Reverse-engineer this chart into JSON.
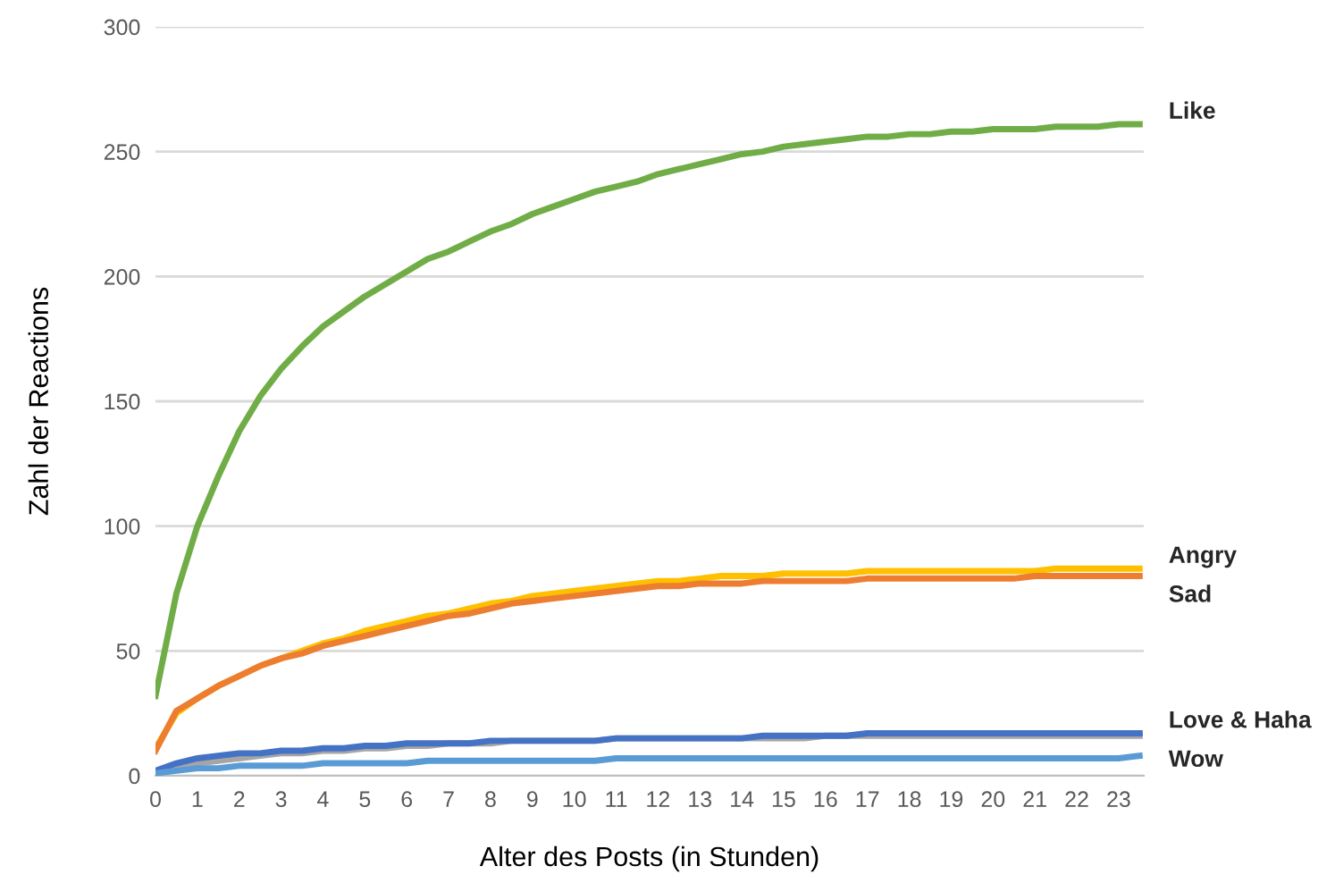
{
  "chart_data": {
    "type": "line",
    "xlabel": "Alter des Posts (in Stunden)",
    "ylabel": "Zahl der Reactions",
    "x": [
      0,
      0.5,
      1,
      1.5,
      2,
      2.5,
      3,
      3.5,
      4,
      4.5,
      5,
      5.5,
      6,
      6.5,
      7,
      7.5,
      8,
      8.5,
      9,
      9.5,
      10,
      10.5,
      11,
      11.5,
      12,
      12.5,
      13,
      13.5,
      14,
      14.5,
      15,
      15.5,
      16,
      16.5,
      17,
      17.5,
      18,
      18.5,
      19,
      19.5,
      20,
      20.5,
      21,
      21.5,
      22,
      22.5,
      23,
      23.5
    ],
    "series": [
      {
        "name": "Like",
        "color": "#70ad47",
        "values": [
          32,
          73,
          100,
          120,
          138,
          152,
          163,
          172,
          180,
          186,
          192,
          197,
          202,
          207,
          210,
          214,
          218,
          221,
          225,
          228,
          231,
          234,
          236,
          238,
          241,
          243,
          245,
          247,
          249,
          250,
          252,
          253,
          254,
          255,
          256,
          256,
          257,
          257,
          258,
          258,
          259,
          259,
          259,
          260,
          260,
          260,
          261,
          261
        ]
      },
      {
        "name": "Angry",
        "color": "#ffc000",
        "values": [
          11,
          25,
          31,
          36,
          40,
          44,
          47,
          50,
          53,
          55,
          58,
          60,
          62,
          64,
          65,
          67,
          69,
          70,
          72,
          73,
          74,
          75,
          76,
          77,
          78,
          78,
          79,
          80,
          80,
          80,
          81,
          81,
          81,
          81,
          82,
          82,
          82,
          82,
          82,
          82,
          82,
          82,
          82,
          83,
          83,
          83,
          83,
          83
        ]
      },
      {
        "name": "Sad",
        "color": "#ed7d31",
        "values": [
          10,
          26,
          31,
          36,
          40,
          44,
          47,
          49,
          52,
          54,
          56,
          58,
          60,
          62,
          64,
          65,
          67,
          69,
          70,
          71,
          72,
          73,
          74,
          75,
          76,
          76,
          77,
          77,
          77,
          78,
          78,
          78,
          78,
          78,
          79,
          79,
          79,
          79,
          79,
          79,
          79,
          79,
          80,
          80,
          80,
          80,
          80,
          80
        ]
      },
      {
        "color": "#a5a5a5",
        "values": [
          1,
          3,
          5,
          6,
          7,
          8,
          9,
          9,
          10,
          10,
          11,
          11,
          12,
          12,
          13,
          13,
          13,
          14,
          14,
          14,
          14,
          14,
          15,
          15,
          15,
          15,
          15,
          15,
          15,
          15,
          15,
          15,
          16,
          16,
          16,
          16,
          16,
          16,
          16,
          16,
          16,
          16,
          16,
          16,
          16,
          16,
          16,
          16
        ]
      },
      {
        "name": "Love & Haha",
        "color": "#4472c4",
        "values": [
          2,
          5,
          7,
          8,
          9,
          9,
          10,
          10,
          11,
          11,
          12,
          12,
          13,
          13,
          13,
          13,
          14,
          14,
          14,
          14,
          14,
          14,
          15,
          15,
          15,
          15,
          15,
          15,
          15,
          16,
          16,
          16,
          16,
          16,
          17,
          17,
          17,
          17,
          17,
          17,
          17,
          17,
          17,
          17,
          17,
          17,
          17,
          17
        ]
      },
      {
        "name": "Wow",
        "color": "#5b9bd5",
        "values": [
          1,
          2,
          3,
          3,
          4,
          4,
          4,
          4,
          5,
          5,
          5,
          5,
          5,
          6,
          6,
          6,
          6,
          6,
          6,
          6,
          6,
          6,
          7,
          7,
          7,
          7,
          7,
          7,
          7,
          7,
          7,
          7,
          7,
          7,
          7,
          7,
          7,
          7,
          7,
          7,
          7,
          7,
          7,
          7,
          7,
          7,
          7,
          8
        ]
      }
    ],
    "xlim": [
      0,
      23.6
    ],
    "xticks": [
      0,
      1,
      2,
      3,
      4,
      5,
      6,
      7,
      8,
      9,
      10,
      11,
      12,
      13,
      14,
      15,
      16,
      17,
      18,
      19,
      20,
      21,
      22,
      23
    ],
    "ylim": [
      0,
      300
    ],
    "yticks": [
      0,
      50,
      100,
      150,
      200,
      250,
      300
    ],
    "grid": "y",
    "legend": false,
    "marker": "none",
    "line_style": "solid"
  }
}
